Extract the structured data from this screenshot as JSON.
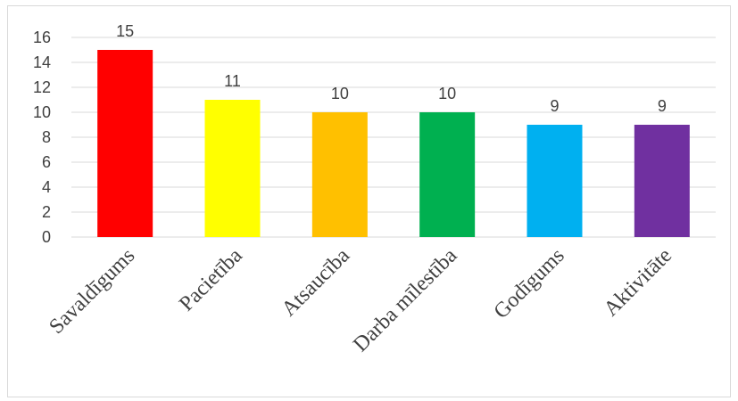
{
  "chart_data": {
    "type": "bar",
    "title": "",
    "xlabel": "",
    "ylabel": "",
    "categories": [
      "Savaldīgums",
      "Pacietība",
      "Atsaucība",
      "Darba mīlestība",
      "Godīgums",
      "Aktivitāte"
    ],
    "values": [
      15,
      11,
      10,
      10,
      9,
      9
    ],
    "colors": [
      "#ff0000",
      "#ffff00",
      "#ffc000",
      "#00b050",
      "#00b0f0",
      "#7030a0"
    ],
    "ylim": [
      0,
      16
    ],
    "yticks": [
      0,
      2,
      4,
      6,
      8,
      10,
      12,
      14,
      16
    ],
    "grid": true,
    "legend": "none",
    "data_labels": true
  }
}
